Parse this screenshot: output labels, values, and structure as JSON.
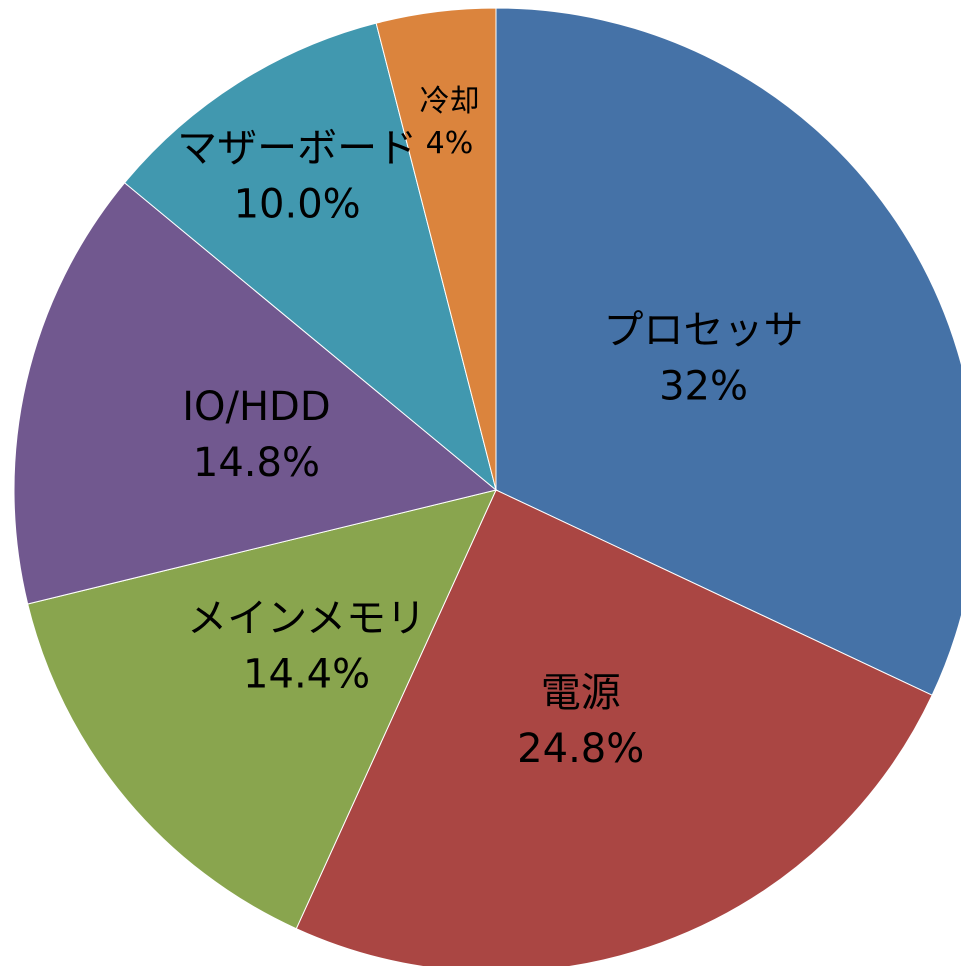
{
  "chart_data": {
    "type": "pie",
    "categories": [
      "プロセッサ",
      "電源",
      "メインメモリ",
      "IO/HDD",
      "マザーボード",
      "冷却"
    ],
    "values": [
      32,
      24.8,
      14.4,
      14.8,
      10.0,
      4
    ],
    "value_labels": [
      "32%",
      "24.8%",
      "14.4%",
      "14.8%",
      "10.0%",
      "4%"
    ],
    "colors": [
      "#4572a7",
      "#aa4643",
      "#89a54e",
      "#71588f",
      "#4198af",
      "#db843d"
    ]
  }
}
